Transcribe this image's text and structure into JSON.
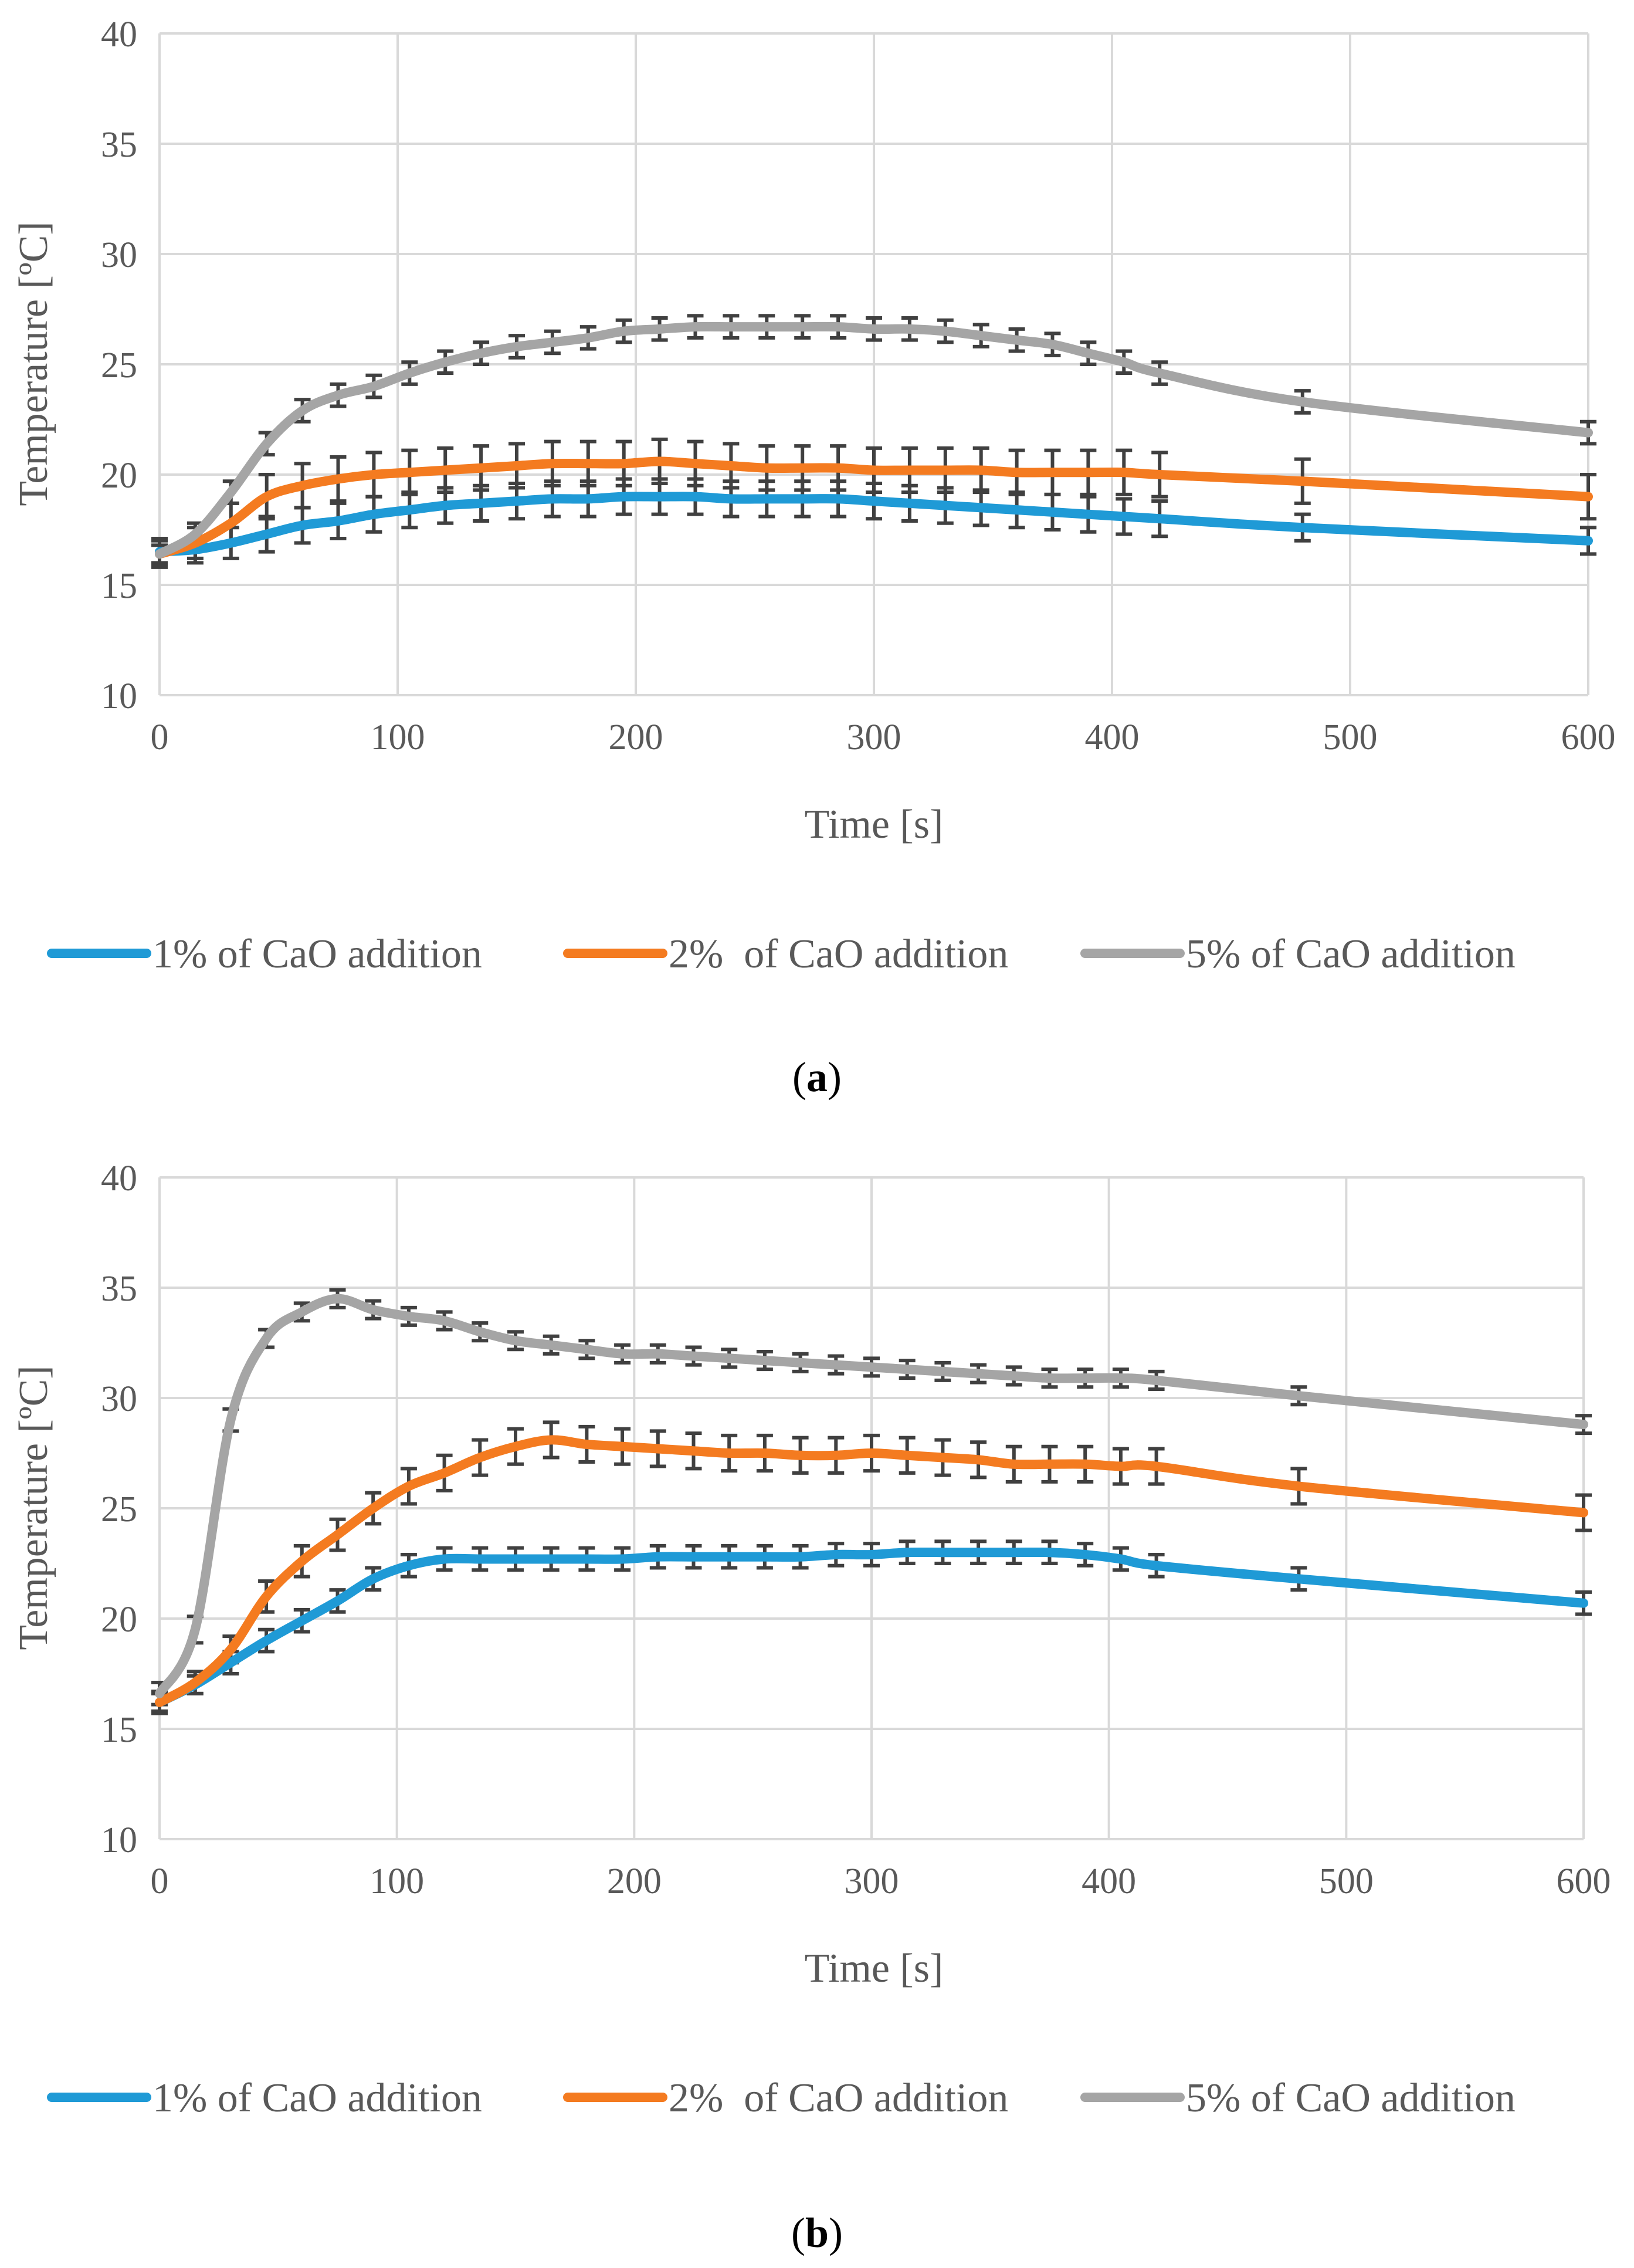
{
  "chart_data": [
    {
      "type": "line",
      "panel": "a",
      "caption_letter": "a",
      "xlabel": "Time [s]",
      "ylabel": "Temperature [ºC]",
      "xlim": [
        0,
        600
      ],
      "ylim": [
        10,
        40
      ],
      "xticks": [
        "0",
        "100",
        "200",
        "300",
        "400",
        "500",
        "600"
      ],
      "yticks": [
        "10",
        "15",
        "20",
        "25",
        "30",
        "35",
        "40"
      ],
      "grid": true,
      "legend_position": "bottom",
      "colors": [
        "#1f9ad6",
        "#f47b20",
        "#a5a5a5"
      ],
      "series": [
        {
          "name": "1% of CaO addition",
          "x": [
            0,
            15,
            30,
            45,
            60,
            75,
            90,
            105,
            120,
            135,
            150,
            165,
            180,
            195,
            210,
            225,
            240,
            255,
            270,
            285,
            300,
            315,
            330,
            345,
            360,
            375,
            390,
            405,
            420,
            480,
            600
          ],
          "y": [
            16.5,
            16.6,
            16.9,
            17.3,
            17.7,
            17.9,
            18.2,
            18.4,
            18.6,
            18.7,
            18.8,
            18.9,
            18.9,
            19.0,
            19.0,
            19.0,
            18.9,
            18.9,
            18.9,
            18.9,
            18.8,
            18.7,
            18.6,
            18.5,
            18.4,
            18.3,
            18.2,
            18.1,
            18.0,
            17.6,
            17.0
          ],
          "err": [
            0.6,
            0.6,
            0.7,
            0.8,
            0.8,
            0.8,
            0.8,
            0.8,
            0.8,
            0.8,
            0.8,
            0.8,
            0.8,
            0.8,
            0.8,
            0.8,
            0.8,
            0.8,
            0.8,
            0.8,
            0.8,
            0.8,
            0.8,
            0.8,
            0.8,
            0.8,
            0.8,
            0.8,
            0.8,
            0.6,
            0.6
          ]
        },
        {
          "name": "2%  of CaO addition",
          "x": [
            0,
            15,
            30,
            45,
            60,
            75,
            90,
            105,
            120,
            135,
            150,
            165,
            180,
            195,
            210,
            225,
            240,
            255,
            270,
            285,
            300,
            315,
            330,
            345,
            360,
            375,
            390,
            405,
            420,
            480,
            600
          ],
          "y": [
            16.4,
            16.9,
            17.8,
            19.0,
            19.5,
            19.8,
            20.0,
            20.1,
            20.2,
            20.3,
            20.4,
            20.5,
            20.5,
            20.5,
            20.6,
            20.5,
            20.4,
            20.3,
            20.3,
            20.3,
            20.2,
            20.2,
            20.2,
            20.2,
            20.1,
            20.1,
            20.1,
            20.1,
            20.0,
            19.7,
            19.0
          ],
          "err": [
            0.6,
            0.7,
            0.9,
            1.0,
            1.0,
            1.0,
            1.0,
            1.0,
            1.0,
            1.0,
            1.0,
            1.0,
            1.0,
            1.0,
            1.0,
            1.0,
            1.0,
            1.0,
            1.0,
            1.0,
            1.0,
            1.0,
            1.0,
            1.0,
            1.0,
            1.0,
            1.0,
            1.0,
            1.0,
            1.0,
            1.0
          ]
        },
        {
          "name": "5% of CaO addition",
          "x": [
            0,
            15,
            30,
            45,
            60,
            75,
            90,
            105,
            120,
            135,
            150,
            165,
            180,
            195,
            210,
            225,
            240,
            255,
            270,
            285,
            300,
            315,
            330,
            345,
            360,
            375,
            390,
            405,
            420,
            480,
            600
          ],
          "y": [
            16.4,
            17.3,
            19.2,
            21.4,
            22.9,
            23.6,
            24.0,
            24.6,
            25.1,
            25.5,
            25.8,
            26.0,
            26.2,
            26.5,
            26.6,
            26.7,
            26.7,
            26.7,
            26.7,
            26.7,
            26.6,
            26.6,
            26.5,
            26.3,
            26.1,
            25.9,
            25.5,
            25.1,
            24.6,
            23.3,
            21.9
          ],
          "err": [
            0.4,
            0.5,
            0.5,
            0.5,
            0.5,
            0.5,
            0.5,
            0.5,
            0.5,
            0.5,
            0.5,
            0.5,
            0.5,
            0.5,
            0.5,
            0.5,
            0.5,
            0.5,
            0.5,
            0.5,
            0.5,
            0.5,
            0.5,
            0.5,
            0.5,
            0.5,
            0.5,
            0.5,
            0.5,
            0.5,
            0.5
          ]
        }
      ]
    },
    {
      "type": "line",
      "panel": "b",
      "caption_letter": "b",
      "xlabel": "Time [s]",
      "ylabel": "Temperature [ºC]",
      "xlim": [
        0,
        600
      ],
      "ylim": [
        10,
        40
      ],
      "xticks": [
        "0",
        "100",
        "200",
        "300",
        "400",
        "500",
        "600"
      ],
      "yticks": [
        "10",
        "15",
        "20",
        "25",
        "30",
        "35",
        "40"
      ],
      "grid": true,
      "legend_position": "bottom",
      "colors": [
        "#1f9ad6",
        "#f47b20",
        "#a5a5a5"
      ],
      "series": [
        {
          "name": "1% of CaO addition",
          "x": [
            0,
            15,
            30,
            45,
            60,
            75,
            90,
            105,
            120,
            135,
            150,
            165,
            180,
            195,
            210,
            225,
            240,
            255,
            270,
            285,
            300,
            315,
            330,
            345,
            360,
            375,
            390,
            405,
            420,
            480,
            600
          ],
          "y": [
            16.2,
            17.0,
            18.0,
            19.0,
            19.9,
            20.8,
            21.8,
            22.4,
            22.7,
            22.7,
            22.7,
            22.7,
            22.7,
            22.7,
            22.8,
            22.8,
            22.8,
            22.8,
            22.8,
            22.9,
            22.9,
            23.0,
            23.0,
            23.0,
            23.0,
            23.0,
            22.9,
            22.7,
            22.4,
            21.8,
            20.7
          ],
          "err": [
            0.4,
            0.4,
            0.5,
            0.5,
            0.5,
            0.5,
            0.5,
            0.5,
            0.5,
            0.5,
            0.5,
            0.5,
            0.5,
            0.5,
            0.5,
            0.5,
            0.5,
            0.5,
            0.5,
            0.5,
            0.5,
            0.5,
            0.5,
            0.5,
            0.5,
            0.5,
            0.5,
            0.5,
            0.5,
            0.5,
            0.5
          ]
        },
        {
          "name": "2%  of CaO addition",
          "x": [
            0,
            15,
            30,
            45,
            60,
            75,
            90,
            105,
            120,
            135,
            150,
            165,
            180,
            195,
            210,
            225,
            240,
            255,
            270,
            285,
            300,
            315,
            330,
            345,
            360,
            375,
            390,
            405,
            420,
            480,
            600
          ],
          "y": [
            16.2,
            17.1,
            18.6,
            21.0,
            22.6,
            23.8,
            25.0,
            26.0,
            26.6,
            27.3,
            27.8,
            28.1,
            27.9,
            27.8,
            27.7,
            27.6,
            27.5,
            27.5,
            27.4,
            27.4,
            27.5,
            27.4,
            27.3,
            27.2,
            27.0,
            27.0,
            27.0,
            26.9,
            26.9,
            26.0,
            24.8
          ],
          "err": [
            0.5,
            0.5,
            0.6,
            0.7,
            0.7,
            0.7,
            0.7,
            0.8,
            0.8,
            0.8,
            0.8,
            0.8,
            0.8,
            0.8,
            0.8,
            0.8,
            0.8,
            0.8,
            0.8,
            0.8,
            0.8,
            0.8,
            0.8,
            0.8,
            0.8,
            0.8,
            0.8,
            0.8,
            0.8,
            0.8,
            0.8
          ]
        },
        {
          "name": "5% of CaO addition",
          "x": [
            0,
            15,
            30,
            45,
            60,
            75,
            90,
            105,
            120,
            135,
            150,
            165,
            180,
            195,
            210,
            225,
            240,
            255,
            270,
            285,
            300,
            315,
            330,
            345,
            360,
            375,
            390,
            405,
            420,
            480,
            600
          ],
          "y": [
            16.6,
            19.5,
            29.0,
            32.7,
            33.9,
            34.5,
            34.0,
            33.7,
            33.5,
            33.0,
            32.6,
            32.4,
            32.2,
            32.0,
            32.0,
            31.9,
            31.8,
            31.7,
            31.6,
            31.5,
            31.4,
            31.3,
            31.2,
            31.1,
            31.0,
            30.9,
            30.9,
            30.9,
            30.8,
            30.1,
            28.8
          ],
          "err": [
            0.5,
            0.6,
            0.5,
            0.4,
            0.4,
            0.4,
            0.4,
            0.4,
            0.4,
            0.4,
            0.4,
            0.4,
            0.4,
            0.4,
            0.4,
            0.4,
            0.4,
            0.4,
            0.4,
            0.4,
            0.4,
            0.4,
            0.4,
            0.4,
            0.4,
            0.4,
            0.4,
            0.4,
            0.4,
            0.4,
            0.4
          ]
        }
      ]
    }
  ]
}
